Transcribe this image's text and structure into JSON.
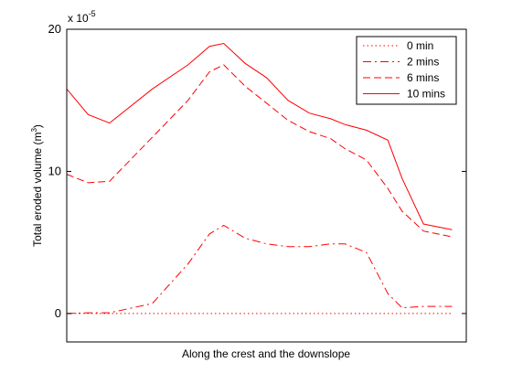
{
  "chart_data": {
    "type": "line",
    "title": "",
    "xlabel": "Along the crest and the downslope",
    "ylabel": "Total eroded volume (m³)",
    "ylabel_base": "Total eroded volume (m",
    "ylabel_sup": "3",
    "ylabel_close": ")",
    "y_multiplier_base": "x 10",
    "y_multiplier_exp": "-5",
    "ylim": [
      -2,
      20
    ],
    "xlim": [
      0,
      28
    ],
    "x_ticks": [],
    "y_ticks": [
      0,
      10,
      20
    ],
    "y_tick_labels": [
      "0",
      "10",
      "20"
    ],
    "grid": false,
    "legend_position": "top-right",
    "line_color": "#ff0000",
    "x": [
      0,
      1.5,
      3,
      6,
      8.5,
      10,
      11,
      12.5,
      14,
      15.5,
      17,
      18.5,
      19.5,
      21,
      22.5,
      23.5,
      25,
      27
    ],
    "series": [
      {
        "name": "0 min",
        "style": "dotted",
        "values": [
          0,
          0,
          0,
          0,
          0,
          0,
          0,
          0,
          0,
          0,
          0,
          0,
          0,
          0,
          0,
          0,
          0,
          0
        ]
      },
      {
        "name": "2 mins",
        "style": "dashdot",
        "values": [
          0,
          0.05,
          0.05,
          0.7,
          3.5,
          5.6,
          6.2,
          5.3,
          4.9,
          4.7,
          4.7,
          4.9,
          4.9,
          4.3,
          1.4,
          0.4,
          0.5,
          0.5
        ]
      },
      {
        "name": "6 mins",
        "style": "dashed",
        "values": [
          9.8,
          9.2,
          9.3,
          12.4,
          15.0,
          17.0,
          17.5,
          16.0,
          14.8,
          13.6,
          12.8,
          12.3,
          11.6,
          10.8,
          8.8,
          7.2,
          5.8,
          5.4
        ]
      },
      {
        "name": "10 mins",
        "style": "solid",
        "values": [
          15.8,
          14.0,
          13.4,
          15.8,
          17.5,
          18.8,
          19.0,
          17.6,
          16.6,
          15.0,
          14.1,
          13.7,
          13.3,
          12.9,
          12.2,
          9.5,
          6.3,
          5.9
        ]
      }
    ]
  }
}
